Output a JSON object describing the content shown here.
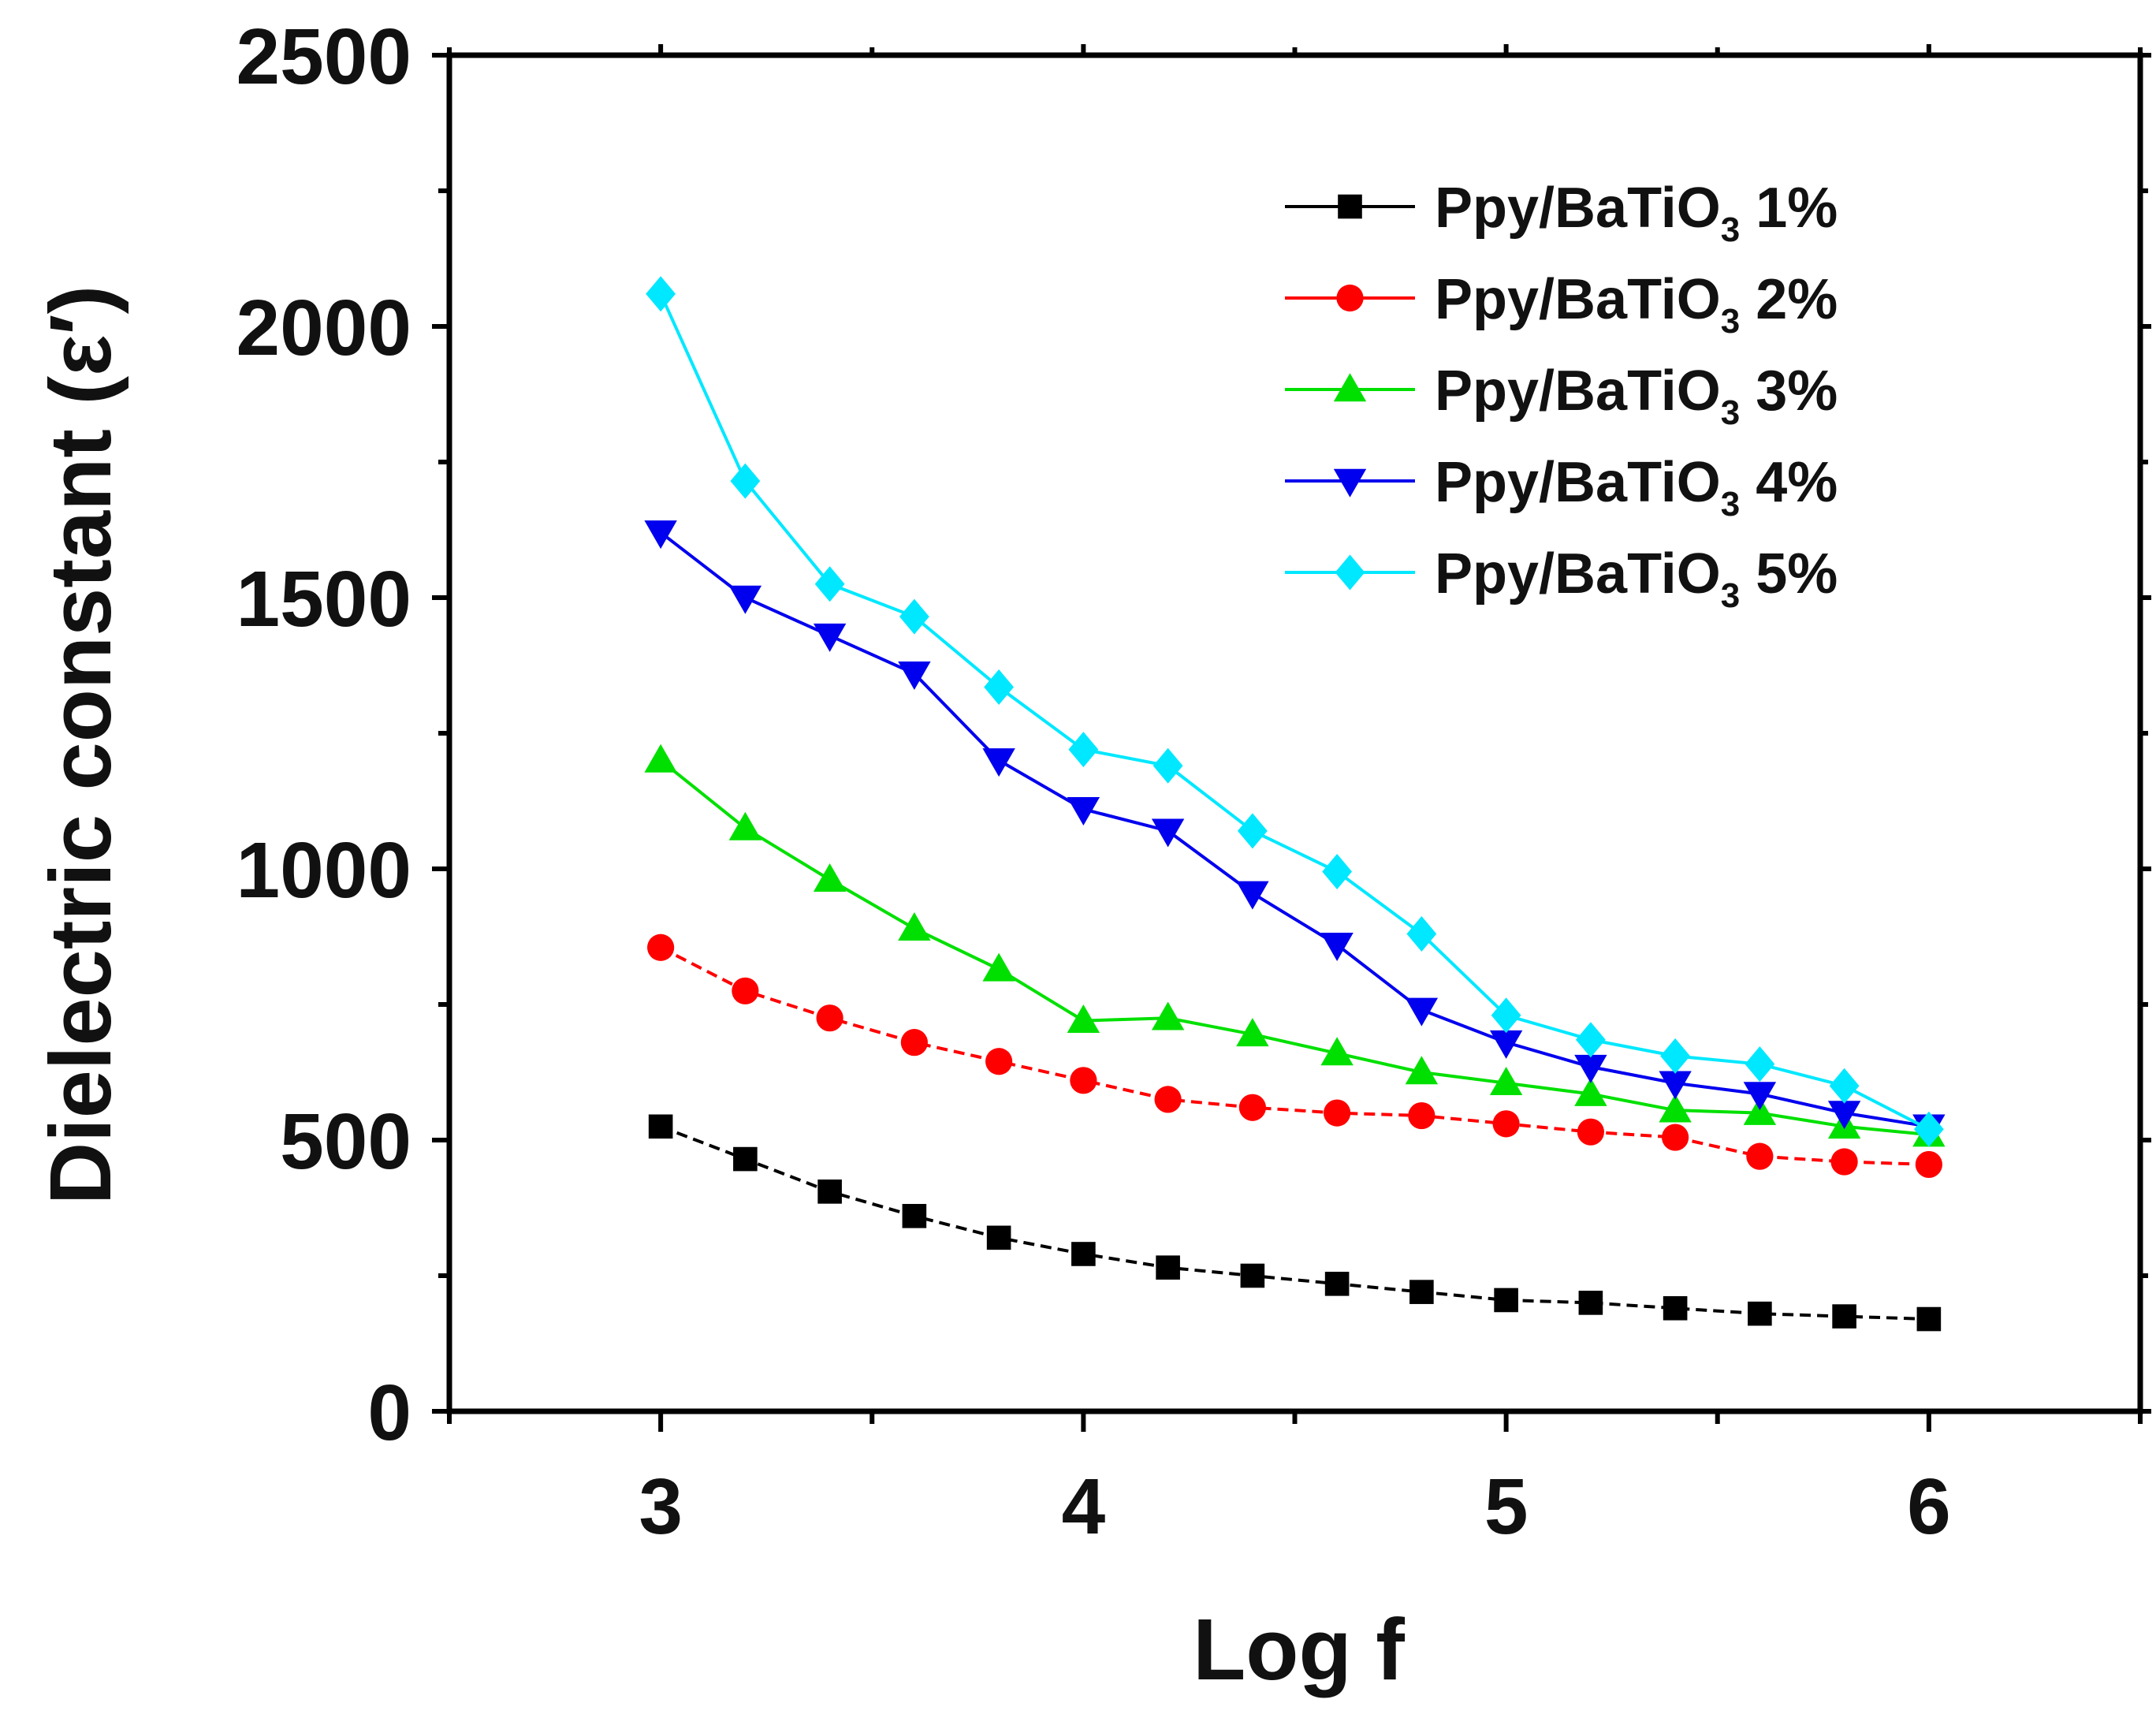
{
  "chart_data": {
    "type": "line",
    "title": "",
    "xlabel": "Log f",
    "ylabel": "Dielectric constant (ε′)",
    "xlim": [
      2.5,
      6.5
    ],
    "ylim": [
      0,
      2500
    ],
    "x_ticks": [
      3,
      4,
      5,
      6
    ],
    "y_ticks": [
      0,
      500,
      1000,
      1500,
      2000,
      2500
    ],
    "grid": false,
    "legend_position": "top-right",
    "x": [
      3.0,
      3.2,
      3.4,
      3.6,
      3.8,
      4.0,
      4.2,
      4.4,
      4.6,
      4.8,
      5.0,
      5.2,
      5.4,
      5.6,
      5.8,
      6.0
    ],
    "series": [
      {
        "name": "Ppy/BaTiO3 1%",
        "label_main": "Ppy/BaTiO",
        "label_sub": "3",
        "label_pct": "1%",
        "color": "#000000",
        "marker": "square",
        "dashed": true,
        "values": [
          525,
          465,
          405,
          360,
          320,
          290,
          265,
          250,
          235,
          220,
          205,
          200,
          190,
          180,
          175,
          170
        ]
      },
      {
        "name": "Ppy/BaTiO3 2%",
        "label_main": "Ppy/BaTiO",
        "label_sub": "3",
        "label_pct": "2%",
        "color": "#ff0000",
        "marker": "circle",
        "dashed": true,
        "values": [
          855,
          775,
          725,
          680,
          645,
          610,
          575,
          560,
          550,
          545,
          530,
          515,
          505,
          470,
          460,
          455
        ]
      },
      {
        "name": "Ppy/BaTiO3 3%",
        "label_main": "Ppy/BaTiO",
        "label_sub": "3",
        "label_pct": "3%",
        "color": "#00e000",
        "marker": "triangle-up",
        "dashed": false,
        "values": [
          1200,
          1075,
          980,
          890,
          815,
          720,
          725,
          695,
          660,
          625,
          605,
          585,
          555,
          550,
          525,
          510
        ]
      },
      {
        "name": "Ppy/BaTiO3 4%",
        "label_main": "Ppy/BaTiO",
        "label_sub": "3",
        "label_pct": "4%",
        "color": "#0000ee",
        "marker": "triangle-down",
        "dashed": false,
        "values": [
          1620,
          1500,
          1430,
          1360,
          1200,
          1110,
          1070,
          955,
          860,
          740,
          680,
          635,
          605,
          585,
          550,
          525
        ]
      },
      {
        "name": "Ppy/BaTiO3 5%",
        "label_main": "Ppy/BaTiO",
        "label_sub": "3",
        "label_pct": "5%",
        "color": "#00e8ff",
        "marker": "diamond",
        "dashed": false,
        "values": [
          2060,
          1715,
          1525,
          1465,
          1335,
          1220,
          1190,
          1070,
          995,
          880,
          730,
          685,
          655,
          640,
          600,
          520
        ]
      }
    ]
  }
}
